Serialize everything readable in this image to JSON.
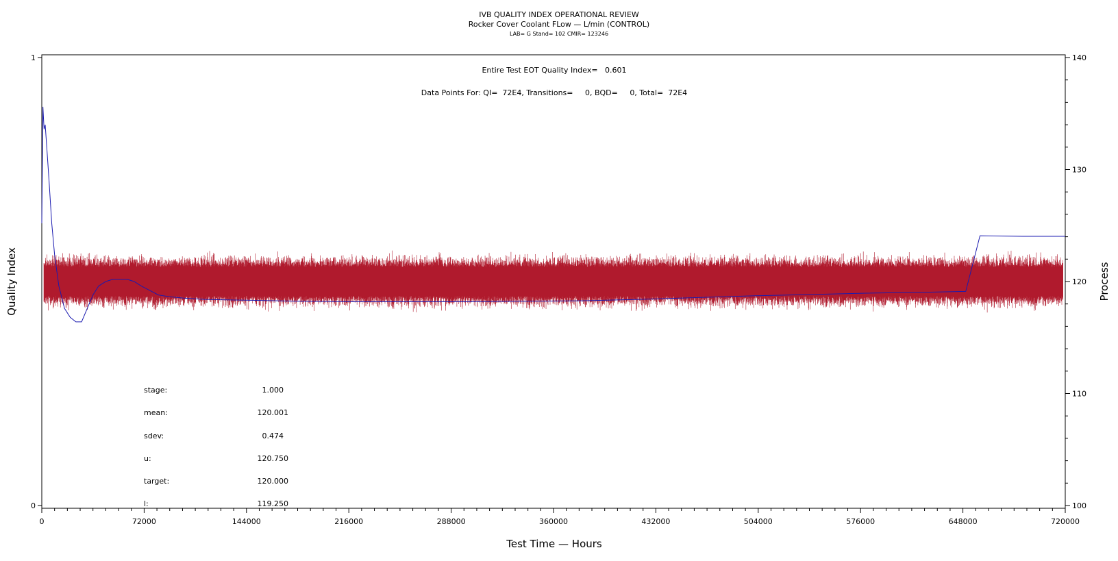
{
  "header": {
    "title": "IVB QUALITY INDEX OPERATIONAL REVIEW",
    "subtitle": "Rocker Cover Coolant FLow — L/min (CONTROL)",
    "info": "LAB= G Stand= 102 CMIR= 123246"
  },
  "annotations": {
    "eot": "Entire Test EOT Quality Index=   0.601",
    "datapoints": "Data Points For: QI=  72E4, Transitions=     0, BQD=     0, Total=  72E4"
  },
  "stats": [
    {
      "label": "stage:",
      "value": "1.000"
    },
    {
      "label": "mean:",
      "value": "120.001"
    },
    {
      "label": "sdev:",
      "value": "0.474"
    },
    {
      "label": "u:",
      "value": "120.750"
    },
    {
      "label": "target:",
      "value": "120.000"
    },
    {
      "label": "l:",
      "value": "119.250"
    }
  ],
  "chart_data": {
    "type": "line",
    "title": "IVB QUALITY INDEX OPERATIONAL REVIEW",
    "xlabel": "Test Time — Hours",
    "ylabel_left": "Quality Index",
    "ylabel_right": "Process",
    "xlim": [
      0,
      720000
    ],
    "ylim_left": [
      0,
      1
    ],
    "ylim_right": [
      100,
      140
    ],
    "x_ticks": [
      "0",
      "72000",
      "144000",
      "216000",
      "288000",
      "360000",
      "432000",
      "504000",
      "576000",
      "648000",
      "720000"
    ],
    "y_left_ticks": [
      "0",
      "1"
    ],
    "y_right_ticks": [
      "100",
      "110",
      "120",
      "130",
      "140"
    ],
    "series": [
      {
        "axis": "right",
        "color": "#b01a2d",
        "mean": 120.001,
        "sdev": 0.474,
        "typical_range": [
          118.0,
          122.7
        ],
        "n_points": 720000
      },
      {
        "axis": "left",
        "color": "#1a1ab0",
        "x": [
          0,
          800,
          1600,
          2400,
          3500,
          5000,
          7000,
          9000,
          12000,
          16000,
          20000,
          24000,
          28000,
          32000,
          36000,
          40000,
          45000,
          50000,
          55000,
          60000,
          65000,
          70000,
          76000,
          82000,
          90000,
          100000,
          115000,
          130000,
          150000,
          180000,
          220000,
          260000,
          300000,
          340000,
          380000,
          420000,
          460000,
          500000,
          540000,
          580000,
          620000,
          650000,
          660000,
          690000,
          720000
        ],
        "y": [
          0.63,
          0.89,
          0.84,
          0.85,
          0.8,
          0.73,
          0.63,
          0.56,
          0.49,
          0.44,
          0.42,
          0.41,
          0.41,
          0.44,
          0.47,
          0.49,
          0.5,
          0.505,
          0.505,
          0.505,
          0.5,
          0.49,
          0.48,
          0.47,
          0.466,
          0.463,
          0.46,
          0.459,
          0.458,
          0.456,
          0.455,
          0.455,
          0.455,
          0.456,
          0.457,
          0.46,
          0.464,
          0.468,
          0.471,
          0.474,
          0.476,
          0.478,
          0.602,
          0.601,
          0.601
        ]
      }
    ]
  }
}
